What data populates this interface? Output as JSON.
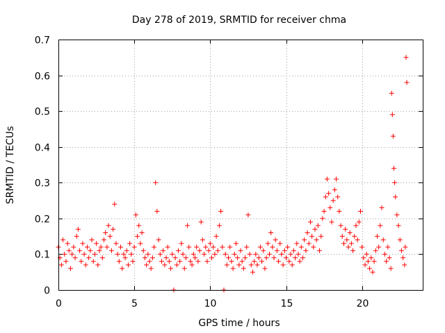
{
  "chart_data": {
    "type": "scatter",
    "title": "Day 278 of 2019, SRMTID for receiver chma",
    "xlabel": "GPS time / hours",
    "ylabel": "SRMTID / TECUs",
    "xlim": [
      0,
      24
    ],
    "ylim": [
      0,
      0.7
    ],
    "x_ticks": [
      0,
      5,
      10,
      15,
      20
    ],
    "x_tick_labels": [
      "0",
      "5",
      "10",
      "15",
      "20"
    ],
    "y_ticks": [
      0,
      0.1,
      0.2,
      0.3,
      0.4,
      0.5,
      0.6,
      0.7
    ],
    "y_tick_labels": [
      "0",
      "0.1",
      "0.2",
      "0.3",
      "0.4",
      "0.5",
      "0.6",
      "0.7"
    ],
    "grid": true,
    "marker": "plus",
    "color": "#ff0000",
    "series": [
      {
        "name": "SRMTID",
        "points": [
          [
            0.0,
            0.12
          ],
          [
            0.1,
            0.09
          ],
          [
            0.2,
            0.07
          ],
          [
            0.3,
            0.14
          ],
          [
            0.4,
            0.1
          ],
          [
            0.5,
            0.08
          ],
          [
            0.6,
            0.13
          ],
          [
            0.7,
            0.11
          ],
          [
            0.8,
            0.06
          ],
          [
            0.9,
            0.1
          ],
          [
            1.0,
            0.12
          ],
          [
            1.1,
            0.09
          ],
          [
            1.2,
            0.15
          ],
          [
            1.3,
            0.17
          ],
          [
            1.4,
            0.11
          ],
          [
            1.5,
            0.08
          ],
          [
            1.6,
            0.13
          ],
          [
            1.7,
            0.1
          ],
          [
            1.8,
            0.07
          ],
          [
            1.9,
            0.12
          ],
          [
            2.0,
            0.09
          ],
          [
            2.1,
            0.11
          ],
          [
            2.2,
            0.14
          ],
          [
            2.3,
            0.08
          ],
          [
            2.4,
            0.1
          ],
          [
            2.5,
            0.13
          ],
          [
            2.6,
            0.07
          ],
          [
            2.7,
            0.11
          ],
          [
            2.8,
            0.12
          ],
          [
            2.9,
            0.09
          ],
          [
            3.0,
            0.14
          ],
          [
            3.1,
            0.16
          ],
          [
            3.2,
            0.12
          ],
          [
            3.3,
            0.18
          ],
          [
            3.4,
            0.15
          ],
          [
            3.5,
            0.11
          ],
          [
            3.6,
            0.17
          ],
          [
            3.7,
            0.24
          ],
          [
            3.8,
            0.13
          ],
          [
            3.9,
            0.1
          ],
          [
            4.0,
            0.08
          ],
          [
            4.1,
            0.12
          ],
          [
            4.2,
            0.06
          ],
          [
            4.3,
            0.1
          ],
          [
            4.4,
            0.09
          ],
          [
            4.5,
            0.11
          ],
          [
            4.6,
            0.07
          ],
          [
            4.7,
            0.13
          ],
          [
            4.8,
            0.1
          ],
          [
            4.9,
            0.08
          ],
          [
            5.0,
            0.12
          ],
          [
            5.1,
            0.21
          ],
          [
            5.2,
            0.15
          ],
          [
            5.3,
            0.18
          ],
          [
            5.4,
            0.13
          ],
          [
            5.5,
            0.16
          ],
          [
            5.6,
            0.11
          ],
          [
            5.7,
            0.09
          ],
          [
            5.8,
            0.07
          ],
          [
            5.9,
            0.1
          ],
          [
            6.0,
            0.08
          ],
          [
            6.1,
            0.06
          ],
          [
            6.2,
            0.09
          ],
          [
            6.3,
            0.12
          ],
          [
            6.4,
            0.3
          ],
          [
            6.5,
            0.22
          ],
          [
            6.6,
            0.14
          ],
          [
            6.7,
            0.1
          ],
          [
            6.8,
            0.08
          ],
          [
            6.9,
            0.11
          ],
          [
            7.0,
            0.07
          ],
          [
            7.1,
            0.09
          ],
          [
            7.2,
            0.12
          ],
          [
            7.3,
            0.08
          ],
          [
            7.4,
            0.06
          ],
          [
            7.5,
            0.1
          ],
          [
            7.6,
            0.0
          ],
          [
            7.7,
            0.09
          ],
          [
            7.8,
            0.07
          ],
          [
            7.9,
            0.11
          ],
          [
            8.0,
            0.08
          ],
          [
            8.1,
            0.13
          ],
          [
            8.2,
            0.1
          ],
          [
            8.3,
            0.06
          ],
          [
            8.4,
            0.09
          ],
          [
            8.5,
            0.18
          ],
          [
            8.6,
            0.12
          ],
          [
            8.7,
            0.08
          ],
          [
            8.8,
            0.07
          ],
          [
            8.9,
            0.1
          ],
          [
            9.0,
            0.09
          ],
          [
            9.1,
            0.12
          ],
          [
            9.2,
            0.08
          ],
          [
            9.3,
            0.11
          ],
          [
            9.4,
            0.19
          ],
          [
            9.5,
            0.14
          ],
          [
            9.6,
            0.1
          ],
          [
            9.7,
            0.12
          ],
          [
            9.8,
            0.08
          ],
          [
            9.9,
            0.11
          ],
          [
            10.0,
            0.13
          ],
          [
            10.1,
            0.09
          ],
          [
            10.2,
            0.12
          ],
          [
            10.3,
            0.1
          ],
          [
            10.4,
            0.15
          ],
          [
            10.5,
            0.11
          ],
          [
            10.6,
            0.18
          ],
          [
            10.7,
            0.22
          ],
          [
            10.8,
            0.12
          ],
          [
            10.9,
            0.0
          ],
          [
            11.0,
            0.1
          ],
          [
            11.1,
            0.07
          ],
          [
            11.2,
            0.09
          ],
          [
            11.3,
            0.12
          ],
          [
            11.4,
            0.08
          ],
          [
            11.5,
            0.06
          ],
          [
            11.6,
            0.1
          ],
          [
            11.7,
            0.13
          ],
          [
            11.8,
            0.09
          ],
          [
            11.9,
            0.07
          ],
          [
            12.0,
            0.11
          ],
          [
            12.1,
            0.08
          ],
          [
            12.2,
            0.06
          ],
          [
            12.3,
            0.09
          ],
          [
            12.4,
            0.12
          ],
          [
            12.5,
            0.21
          ],
          [
            12.6,
            0.1
          ],
          [
            12.7,
            0.07
          ],
          [
            12.8,
            0.05
          ],
          [
            12.9,
            0.08
          ],
          [
            13.0,
            0.1
          ],
          [
            13.1,
            0.07
          ],
          [
            13.2,
            0.09
          ],
          [
            13.3,
            0.12
          ],
          [
            13.4,
            0.08
          ],
          [
            13.5,
            0.11
          ],
          [
            13.6,
            0.06
          ],
          [
            13.7,
            0.09
          ],
          [
            13.8,
            0.13
          ],
          [
            13.9,
            0.1
          ],
          [
            14.0,
            0.16
          ],
          [
            14.1,
            0.12
          ],
          [
            14.2,
            0.09
          ],
          [
            14.3,
            0.14
          ],
          [
            14.4,
            0.11
          ],
          [
            14.5,
            0.08
          ],
          [
            14.6,
            0.13
          ],
          [
            14.7,
            0.1
          ],
          [
            14.8,
            0.07
          ],
          [
            14.9,
            0.11
          ],
          [
            15.0,
            0.09
          ],
          [
            15.1,
            0.12
          ],
          [
            15.2,
            0.08
          ],
          [
            15.3,
            0.1
          ],
          [
            15.4,
            0.07
          ],
          [
            15.5,
            0.11
          ],
          [
            15.6,
            0.09
          ],
          [
            15.7,
            0.13
          ],
          [
            15.8,
            0.1
          ],
          [
            15.9,
            0.08
          ],
          [
            16.0,
            0.12
          ],
          [
            16.1,
            0.09
          ],
          [
            16.2,
            0.14
          ],
          [
            16.3,
            0.11
          ],
          [
            16.4,
            0.16
          ],
          [
            16.5,
            0.13
          ],
          [
            16.6,
            0.19
          ],
          [
            16.7,
            0.15
          ],
          [
            16.8,
            0.12
          ],
          [
            16.9,
            0.17
          ],
          [
            17.0,
            0.14
          ],
          [
            17.1,
            0.18
          ],
          [
            17.2,
            0.11
          ],
          [
            17.3,
            0.15
          ],
          [
            17.4,
            0.2
          ],
          [
            17.5,
            0.22
          ],
          [
            17.6,
            0.26
          ],
          [
            17.7,
            0.31
          ],
          [
            17.8,
            0.27
          ],
          [
            17.9,
            0.23
          ],
          [
            18.0,
            0.19
          ],
          [
            18.1,
            0.25
          ],
          [
            18.2,
            0.28
          ],
          [
            18.3,
            0.31
          ],
          [
            18.4,
            0.26
          ],
          [
            18.5,
            0.22
          ],
          [
            18.6,
            0.18
          ],
          [
            18.7,
            0.15
          ],
          [
            18.8,
            0.13
          ],
          [
            18.9,
            0.17
          ],
          [
            19.0,
            0.14
          ],
          [
            19.1,
            0.12
          ],
          [
            19.2,
            0.16
          ],
          [
            19.3,
            0.13
          ],
          [
            19.4,
            0.11
          ],
          [
            19.5,
            0.15
          ],
          [
            19.6,
            0.18
          ],
          [
            19.7,
            0.14
          ],
          [
            19.8,
            0.19
          ],
          [
            19.9,
            0.22
          ],
          [
            20.0,
            0.12
          ],
          [
            20.1,
            0.09
          ],
          [
            20.2,
            0.07
          ],
          [
            20.3,
            0.1
          ],
          [
            20.4,
            0.08
          ],
          [
            20.5,
            0.06
          ],
          [
            20.6,
            0.09
          ],
          [
            20.7,
            0.05
          ],
          [
            20.8,
            0.08
          ],
          [
            20.9,
            0.11
          ],
          [
            21.0,
            0.15
          ],
          [
            21.1,
            0.12
          ],
          [
            21.2,
            0.18
          ],
          [
            21.3,
            0.23
          ],
          [
            21.4,
            0.14
          ],
          [
            21.5,
            0.1
          ],
          [
            21.6,
            0.08
          ],
          [
            21.7,
            0.12
          ],
          [
            21.8,
            0.09
          ],
          [
            21.9,
            0.06
          ],
          [
            21.95,
            0.55
          ],
          [
            22.0,
            0.49
          ],
          [
            22.05,
            0.43
          ],
          [
            22.1,
            0.34
          ],
          [
            22.15,
            0.3
          ],
          [
            22.2,
            0.26
          ],
          [
            22.3,
            0.21
          ],
          [
            22.4,
            0.18
          ],
          [
            22.5,
            0.14
          ],
          [
            22.6,
            0.11
          ],
          [
            22.7,
            0.09
          ],
          [
            22.8,
            0.07
          ],
          [
            22.85,
            0.12
          ],
          [
            22.9,
            0.65
          ],
          [
            22.95,
            0.58
          ]
        ]
      }
    ]
  }
}
